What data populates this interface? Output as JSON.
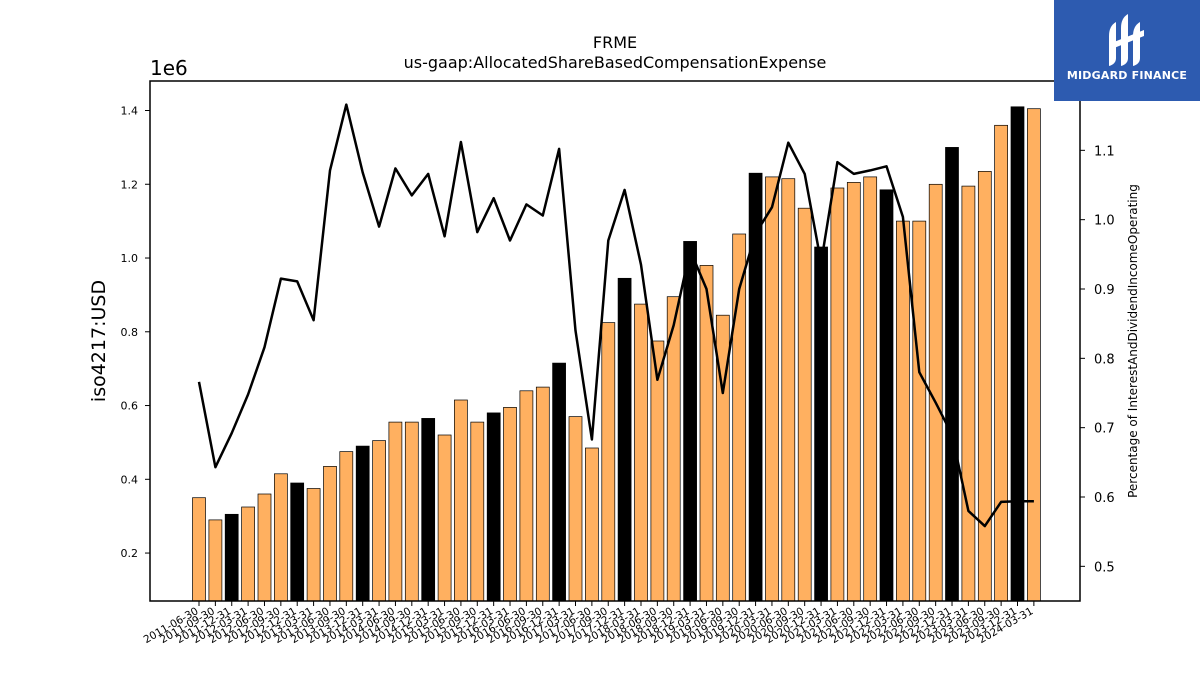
{
  "chart_data": {
    "type": "bar",
    "title": "FRME",
    "subtitle": "us-gaap:AllocatedShareBasedCompensationExpense",
    "ylabel": "iso4217:USD",
    "y_offset_label": "1e6",
    "y2label": "Percentage of InterestAndDividendIncomeOperating",
    "ylim": [
      0.07,
      1.48
    ],
    "y2lim": [
      0.45,
      1.2
    ],
    "yticks": [
      "0.2",
      "0.4",
      "0.6",
      "0.8",
      "1.0",
      "1.2",
      "1.4"
    ],
    "y2ticks": [
      "0.5",
      "0.6",
      "0.7",
      "0.8",
      "0.9",
      "1.0",
      "1.1"
    ],
    "categories": [
      "2011-06-30",
      "2011-09-30",
      "2011-12-31",
      "2012-03-31",
      "2012-06-30",
      "2012-09-30",
      "2012-12-31",
      "2013-03-31",
      "2013-06-30",
      "2013-09-30",
      "2013-12-31",
      "2014-03-31",
      "2014-06-30",
      "2014-09-30",
      "2014-12-31",
      "2015-03-31",
      "2015-06-30",
      "2015-09-30",
      "2015-12-31",
      "2016-03-31",
      "2016-06-30",
      "2016-09-30",
      "2016-12-31",
      "2017-03-31",
      "2017-06-30",
      "2017-09-30",
      "2017-12-31",
      "2018-03-31",
      "2018-06-30",
      "2018-09-30",
      "2018-12-31",
      "2019-03-31",
      "2019-06-30",
      "2019-09-30",
      "2019-12-31",
      "2020-03-31",
      "2020-06-30",
      "2020-09-30",
      "2020-12-31",
      "2021-03-31",
      "2021-06-30",
      "2021-09-30",
      "2021-12-31",
      "2022-03-31",
      "2022-06-30",
      "2022-09-30",
      "2022-12-31",
      "2023-03-31",
      "2023-06-30",
      "2023-09-30",
      "2023-12-31",
      "2024-03-31"
    ],
    "series": [
      {
        "kind": "bar",
        "values": [
          0.35,
          0.29,
          0.305,
          0.325,
          0.36,
          0.415,
          0.39,
          0.375,
          0.435,
          0.475,
          0.49,
          0.505,
          0.555,
          0.555,
          0.565,
          0.52,
          0.615,
          0.555,
          0.58,
          0.595,
          0.64,
          0.65,
          0.715,
          0.57,
          0.485,
          0.825,
          0.945,
          0.875,
          0.775,
          0.895,
          1.045,
          0.98,
          0.845,
          1.065,
          1.23,
          1.22,
          1.215,
          1.135,
          1.03,
          1.19,
          1.205,
          1.22,
          1.185,
          1.1,
          1.1,
          1.2,
          1.3,
          1.195,
          1.235,
          1.36,
          1.41,
          1.405
        ],
        "highlight": [
          false,
          false,
          true,
          false,
          false,
          false,
          true,
          false,
          false,
          false,
          true,
          false,
          false,
          false,
          true,
          false,
          false,
          false,
          true,
          false,
          false,
          false,
          true,
          false,
          false,
          false,
          true,
          false,
          false,
          false,
          true,
          false,
          false,
          false,
          true,
          false,
          false,
          false,
          true,
          false,
          false,
          false,
          true,
          false,
          false,
          false,
          true,
          false,
          false,
          false,
          true,
          false
        ]
      },
      {
        "kind": "line",
        "axis": "right",
        "values": [
          0.766,
          0.643,
          0.692,
          0.748,
          0.816,
          0.915,
          0.911,
          0.855,
          1.071,
          1.166,
          1.068,
          0.99,
          1.074,
          1.035,
          1.066,
          0.976,
          1.112,
          0.982,
          1.031,
          0.97,
          1.022,
          1.006,
          1.102,
          0.84,
          0.683,
          0.97,
          1.043,
          0.935,
          0.769,
          0.848,
          0.956,
          0.9,
          0.75,
          0.9,
          0.98,
          1.018,
          1.111,
          1.066,
          0.938,
          1.083,
          1.066,
          1.071,
          1.077,
          1.004,
          0.78,
          0.736,
          0.69,
          0.58,
          0.558,
          0.593,
          0.594,
          0.594
        ]
      }
    ],
    "colors": {
      "bar": "#ffb060",
      "bar_highlight": "#000000",
      "line": "#000000"
    },
    "grid": false
  },
  "logo": {
    "text": "MIDGARD FINANCE"
  }
}
